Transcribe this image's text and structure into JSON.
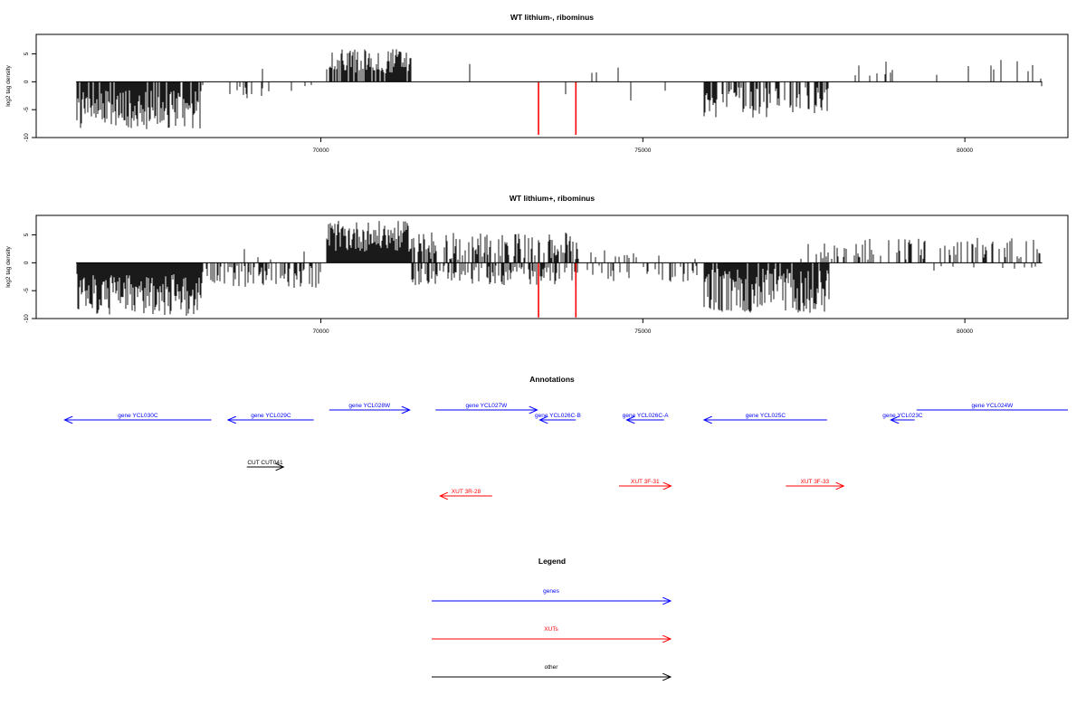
{
  "colors": {
    "genes": "#0000ff",
    "xuts": "#ff0000",
    "other": "#000000",
    "signal": "#000000",
    "highlight": "#ff0000"
  },
  "chart_data": [
    {
      "type": "bar",
      "title": "WT lithium-, ribominus",
      "xlabel": "",
      "ylabel": "log2 tag density",
      "xlim": [
        65580,
        81600
      ],
      "ylim": [
        -10,
        8.5
      ],
      "xticks": [
        70000,
        75000,
        80000
      ],
      "xtick_labels": [
        "70000",
        "75000",
        "80000"
      ],
      "yticks": [
        5,
        0,
        -5,
        -10
      ],
      "ytick_labels": [
        "5",
        "0",
        "-5",
        "-10"
      ],
      "baseline": {
        "from": 66200,
        "to": 81200
      },
      "grid": false,
      "segments": [
        {
          "from": 66200,
          "to": 68150,
          "sign": -1,
          "min": 1.5,
          "max": 8.5,
          "density": 0.9
        },
        {
          "from": 68150,
          "to": 69900,
          "sign": -1,
          "min": 0.5,
          "max": 3.0,
          "density": 0.18
        },
        {
          "from": 68800,
          "to": 69500,
          "sign": 1,
          "min": 1.0,
          "max": 3.0,
          "density": 0.01
        },
        {
          "from": 70080,
          "to": 71400,
          "sign": 1,
          "min": 1.5,
          "max": 6.0,
          "density": 0.8
        },
        {
          "from": 71500,
          "to": 75500,
          "sign": 1,
          "min": 0.5,
          "max": 4.5,
          "density": 0.025
        },
        {
          "from": 71500,
          "to": 75500,
          "sign": -1,
          "min": 0.5,
          "max": 3.5,
          "density": 0.025
        },
        {
          "from": 75950,
          "to": 77900,
          "sign": -1,
          "min": 1.0,
          "max": 6.5,
          "density": 0.55
        },
        {
          "from": 78000,
          "to": 81200,
          "sign": 1,
          "min": 0.5,
          "max": 4.0,
          "density": 0.05
        },
        {
          "from": 80800,
          "to": 81200,
          "sign": -1,
          "min": 0.5,
          "max": 1.5,
          "density": 0.02
        }
      ],
      "highlights": [
        {
          "x": 73380,
          "value": -9.5
        },
        {
          "x": 73960,
          "value": -9.5
        }
      ]
    },
    {
      "type": "bar",
      "title": "WT lithium+, ribominus",
      "xlabel": "",
      "ylabel": "log2 tag density",
      "xlim": [
        65580,
        81600
      ],
      "ylim": [
        -10,
        8.5
      ],
      "xticks": [
        70000,
        75000,
        80000
      ],
      "xtick_labels": [
        "70000",
        "75000",
        "80000"
      ],
      "yticks": [
        5,
        0,
        -5,
        -10
      ],
      "ytick_labels": [
        "5",
        "0",
        "-5",
        "-10"
      ],
      "baseline": {
        "from": 66200,
        "to": 81200
      },
      "grid": false,
      "segments": [
        {
          "from": 66200,
          "to": 68150,
          "sign": -1,
          "min": 2.0,
          "max": 9.5,
          "density": 1.0
        },
        {
          "from": 68150,
          "to": 70000,
          "sign": -1,
          "min": 0.5,
          "max": 4.5,
          "density": 0.5
        },
        {
          "from": 68600,
          "to": 69800,
          "sign": 1,
          "min": 0.5,
          "max": 2.5,
          "density": 0.06
        },
        {
          "from": 70080,
          "to": 71400,
          "sign": 1,
          "min": 2.0,
          "max": 7.5,
          "density": 1.0
        },
        {
          "from": 71400,
          "to": 74000,
          "sign": 1,
          "min": 0.5,
          "max": 5.5,
          "density": 0.55
        },
        {
          "from": 71400,
          "to": 74000,
          "sign": -1,
          "min": 0.5,
          "max": 4.0,
          "density": 0.45
        },
        {
          "from": 74000,
          "to": 75900,
          "sign": 1,
          "min": 0.5,
          "max": 2.5,
          "density": 0.1
        },
        {
          "from": 74000,
          "to": 75900,
          "sign": -1,
          "min": 0.5,
          "max": 3.5,
          "density": 0.25
        },
        {
          "from": 75950,
          "to": 77900,
          "sign": -1,
          "min": 1.0,
          "max": 9.0,
          "density": 0.9
        },
        {
          "from": 77400,
          "to": 77900,
          "sign": 1,
          "min": 0.5,
          "max": 3.5,
          "density": 0.35
        },
        {
          "from": 77900,
          "to": 81200,
          "sign": 1,
          "min": 0.5,
          "max": 4.5,
          "density": 0.3
        },
        {
          "from": 79500,
          "to": 81200,
          "sign": -1,
          "min": 0.5,
          "max": 2.0,
          "density": 0.05
        }
      ],
      "highlights": [
        {
          "x": 73380,
          "value": -9.8
        },
        {
          "x": 73960,
          "value": -9.8
        }
      ]
    }
  ],
  "annotations": {
    "title": "Annotations",
    "features": [
      {
        "label": "gene YCL030C",
        "category": "genes",
        "start": 66020,
        "end": 68300,
        "strand": "-",
        "row": 1
      },
      {
        "label": "gene YCL029C",
        "category": "genes",
        "start": 68560,
        "end": 69890,
        "strand": "-",
        "row": 1
      },
      {
        "label": "gene YCL028W",
        "category": "genes",
        "start": 70130,
        "end": 71380,
        "strand": "+",
        "row": 0
      },
      {
        "label": "gene YCL027W",
        "category": "genes",
        "start": 71780,
        "end": 73360,
        "strand": "+",
        "row": 0
      },
      {
        "label": "gene YCL026C-B",
        "category": "genes",
        "start": 73400,
        "end": 73960,
        "strand": "-",
        "row": 1
      },
      {
        "label": "gene YCL026C-A",
        "category": "genes",
        "start": 74750,
        "end": 75330,
        "strand": "-",
        "row": 1
      },
      {
        "label": "gene YCL025C",
        "category": "genes",
        "start": 75950,
        "end": 77860,
        "strand": "-",
        "row": 1
      },
      {
        "label": "gene YCL023C",
        "category": "genes",
        "start": 78850,
        "end": 79220,
        "strand": "-",
        "row": 1
      },
      {
        "label": "gene YCL024W",
        "category": "genes",
        "start": 79250,
        "end": 81600,
        "strand": "+",
        "row": 0
      },
      {
        "label": "CUT CUT041",
        "category": "other",
        "start": 68850,
        "end": 69420,
        "strand": "+",
        "row": 2
      },
      {
        "label": "XUT 3R-28",
        "category": "xuts",
        "start": 71850,
        "end": 72660,
        "strand": "-",
        "row": 4
      },
      {
        "label": "XUT 3F-31",
        "category": "xuts",
        "start": 74630,
        "end": 75440,
        "strand": "+",
        "row": 3
      },
      {
        "label": "XUT 3F-33",
        "category": "xuts",
        "start": 77220,
        "end": 78120,
        "strand": "+",
        "row": 3
      }
    ]
  },
  "legend": {
    "title": "Legend",
    "items": [
      {
        "label": "genes",
        "category": "genes"
      },
      {
        "label": "XUTs",
        "category": "xuts"
      },
      {
        "label": "other",
        "category": "other"
      }
    ]
  }
}
